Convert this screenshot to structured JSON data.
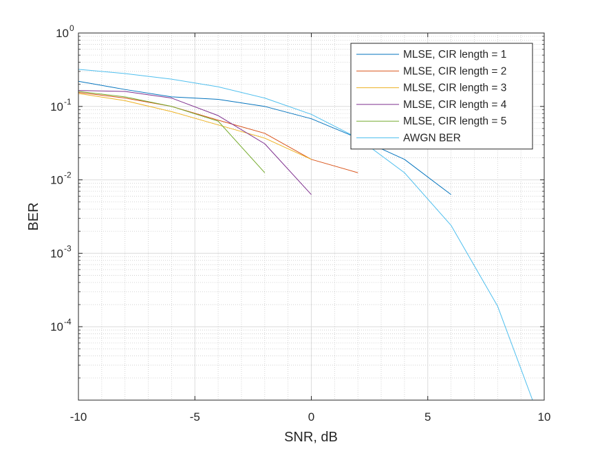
{
  "chart_data": {
    "type": "line",
    "title": "",
    "xlabel": "SNR, dB",
    "ylabel": "BER",
    "xscale": "linear",
    "yscale": "log",
    "xlim": [
      -10,
      10
    ],
    "ylim": [
      1e-05,
      1
    ],
    "grid": true,
    "minor_grid": true,
    "legend_position": "top-right",
    "x_ticks": [
      {
        "value": -10,
        "label": "-10"
      },
      {
        "value": -5,
        "label": "-5"
      },
      {
        "value": 0,
        "label": "0"
      },
      {
        "value": 5,
        "label": "5"
      },
      {
        "value": 10,
        "label": "10"
      }
    ],
    "y_ticks": [
      {
        "value": 1,
        "base": "10",
        "exp": "0"
      },
      {
        "value": 0.1,
        "base": "10",
        "exp": "-1"
      },
      {
        "value": 0.01,
        "base": "10",
        "exp": "-2"
      },
      {
        "value": 0.001,
        "base": "10",
        "exp": "-3"
      },
      {
        "value": 0.0001,
        "base": "10",
        "exp": "-4"
      }
    ],
    "series": [
      {
        "name": "MLSE, CIR length = 1",
        "color": "#0072BD",
        "x": [
          -10,
          -8,
          -6,
          -4,
          -2,
          0,
          2,
          4,
          6
        ],
        "y": [
          0.22,
          0.17,
          0.135,
          0.125,
          0.1,
          0.068,
          0.037,
          0.019,
          0.0063
        ]
      },
      {
        "name": "MLSE, CIR length = 2",
        "color": "#D95319",
        "x": [
          -10,
          -8,
          -6,
          -4,
          -2,
          0,
          2
        ],
        "y": [
          0.155,
          0.13,
          0.1,
          0.065,
          0.043,
          0.019,
          0.0125
        ]
      },
      {
        "name": "MLSE, CIR length = 3",
        "color": "#EDB120",
        "x": [
          -10,
          -8,
          -6,
          -4,
          -2,
          0
        ],
        "y": [
          0.15,
          0.12,
          0.085,
          0.056,
          0.037,
          0.019
        ]
      },
      {
        "name": "MLSE, CIR length = 4",
        "color": "#7E2F8E",
        "x": [
          -10,
          -8,
          -6,
          -4,
          -2,
          0
        ],
        "y": [
          0.165,
          0.16,
          0.13,
          0.075,
          0.031,
          0.0063
        ]
      },
      {
        "name": "MLSE, CIR length = 5",
        "color": "#77AC30",
        "x": [
          -10,
          -8,
          -6,
          -4,
          -2
        ],
        "y": [
          0.16,
          0.135,
          0.1,
          0.063,
          0.0125
        ]
      },
      {
        "name": "AWGN BER",
        "color": "#4DBEEE",
        "x": [
          -10,
          -8,
          -6,
          -4,
          -2,
          0,
          2,
          4,
          6,
          8,
          9.5
        ],
        "y": [
          0.32,
          0.28,
          0.235,
          0.185,
          0.13,
          0.078,
          0.037,
          0.0125,
          0.0024,
          0.00019,
          1e-05
        ]
      }
    ]
  }
}
